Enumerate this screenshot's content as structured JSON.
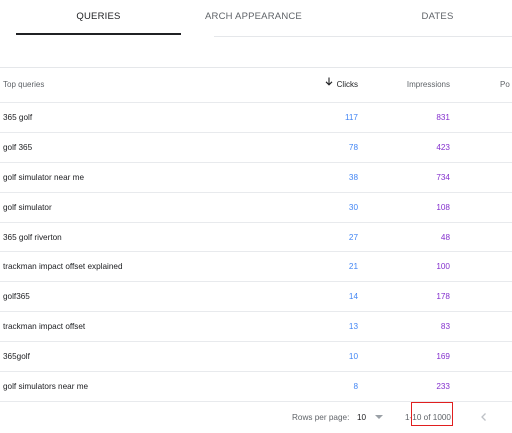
{
  "tabs": [
    {
      "label": "QUERIES",
      "active": true
    },
    {
      "label": "ARCH APPEARANCE",
      "active": false
    },
    {
      "label": "DATES",
      "active": false
    }
  ],
  "table": {
    "headers": {
      "query": "Top queries",
      "clicks": "Clicks",
      "impressions": "Impressions",
      "position": "Po"
    },
    "sort_icon": "arrow-down-icon",
    "rows": [
      {
        "query": "365 golf",
        "clicks": "117",
        "impressions": "831"
      },
      {
        "query": "golf 365",
        "clicks": "78",
        "impressions": "423"
      },
      {
        "query": "golf simulator near me",
        "clicks": "38",
        "impressions": "734"
      },
      {
        "query": "golf simulator",
        "clicks": "30",
        "impressions": "108"
      },
      {
        "query": "365 golf riverton",
        "clicks": "27",
        "impressions": "48"
      },
      {
        "query": "trackman impact offset explained",
        "clicks": "21",
        "impressions": "100"
      },
      {
        "query": "golf365",
        "clicks": "14",
        "impressions": "178"
      },
      {
        "query": "trackman impact offset",
        "clicks": "13",
        "impressions": "83"
      },
      {
        "query": "365golf",
        "clicks": "10",
        "impressions": "169"
      },
      {
        "query": "golf simulators near me",
        "clicks": "8",
        "impressions": "233"
      }
    ]
  },
  "footer": {
    "rows_per_page_label": "Rows per page:",
    "rows_per_page_value": "10",
    "range_text": "1-10 of 1000",
    "prev_icon": "chevron-left-icon"
  },
  "colors": {
    "clicks": "#4285f4",
    "impressions": "#8430ce",
    "highlight_box": "#e01f1f"
  }
}
